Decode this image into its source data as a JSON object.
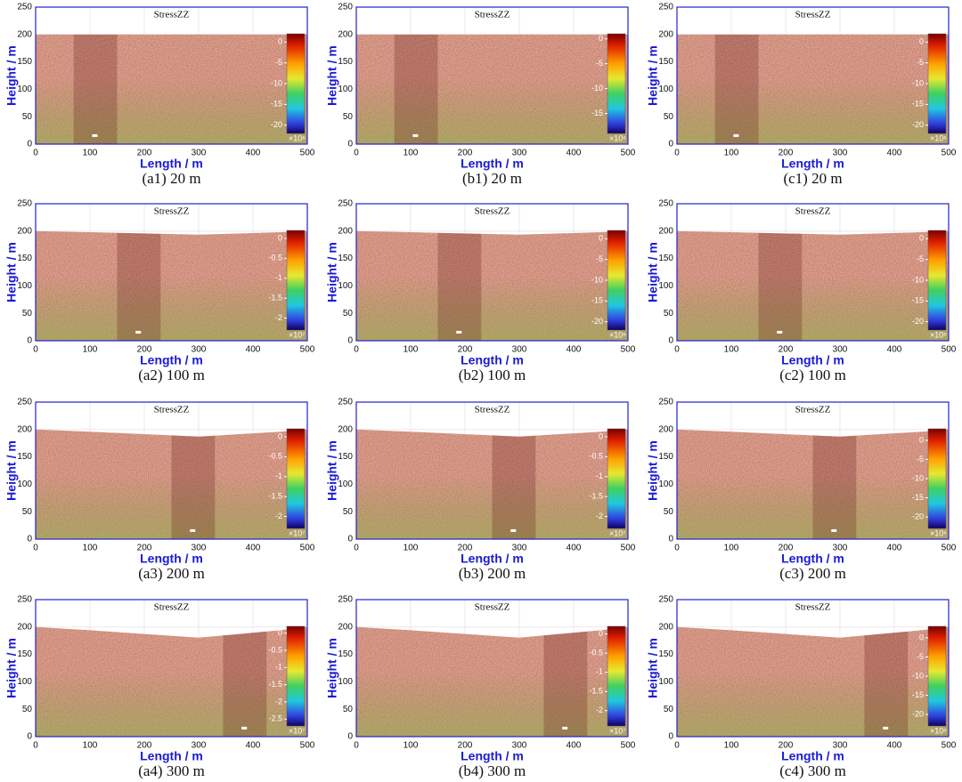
{
  "chart_data": [
    {
      "type": "image",
      "title": "StressZZ",
      "xlabel": "Length / m",
      "ylabel": "Height / m",
      "xlim": [
        0,
        500
      ],
      "ylim": [
        0,
        250
      ],
      "xticks": [
        0,
        100,
        200,
        300,
        400,
        500
      ],
      "yticks": [
        0,
        50,
        100,
        150,
        200,
        250
      ],
      "colorbar": {
        "lim": [
          -22,
          2
        ],
        "ticks": [
          0,
          -5,
          -10,
          -15,
          -20
        ],
        "label": "×10⁶"
      },
      "caption": "(a1) 20 m"
    },
    {
      "type": "image",
      "title": "StressZZ",
      "xlabel": "Length / m",
      "ylabel": "Height / m",
      "xlim": [
        0,
        500
      ],
      "ylim": [
        0,
        250
      ],
      "xticks": [
        0,
        100,
        200,
        300,
        400,
        500
      ],
      "yticks": [
        0,
        50,
        100,
        150,
        200,
        250
      ],
      "colorbar": {
        "lim": [
          -19,
          1
        ],
        "ticks": [
          0,
          -5,
          -10,
          -15
        ],
        "label": "×10⁶"
      },
      "caption": "(b1) 20 m"
    },
    {
      "type": "image",
      "title": "StressZZ",
      "xlabel": "Length / m",
      "ylabel": "Height / m",
      "xlim": [
        0,
        500
      ],
      "ylim": [
        0,
        250
      ],
      "xticks": [
        0,
        100,
        200,
        300,
        400,
        500
      ],
      "yticks": [
        0,
        50,
        100,
        150,
        200,
        250
      ],
      "colorbar": {
        "lim": [
          -22,
          2
        ],
        "ticks": [
          0,
          -5,
          -10,
          -15,
          -20
        ],
        "label": "×10⁶"
      },
      "caption": "(c1) 20 m"
    },
    {
      "type": "image",
      "title": "StressZZ",
      "xlabel": "Length / m",
      "ylabel": "Height / m",
      "xlim": [
        0,
        500
      ],
      "ylim": [
        0,
        250
      ],
      "xticks": [
        0,
        100,
        200,
        300,
        400,
        500
      ],
      "yticks": [
        0,
        50,
        100,
        150,
        200,
        250
      ],
      "colorbar": {
        "lim": [
          -2.3,
          0.2
        ],
        "ticks": [
          0,
          -0.5,
          -1,
          -1.5,
          -2
        ],
        "label": "×10⁷"
      },
      "caption": "(a2) 100 m"
    },
    {
      "type": "image",
      "title": "StressZZ",
      "xlabel": "Length / m",
      "ylabel": "Height / m",
      "xlim": [
        0,
        500
      ],
      "ylim": [
        0,
        250
      ],
      "xticks": [
        0,
        100,
        200,
        300,
        400,
        500
      ],
      "yticks": [
        0,
        50,
        100,
        150,
        200,
        250
      ],
      "colorbar": {
        "lim": [
          -22,
          2
        ],
        "ticks": [
          0,
          -5,
          -10,
          -15,
          -20
        ],
        "label": "×10⁶"
      },
      "caption": "(b2) 100 m"
    },
    {
      "type": "image",
      "title": "StressZZ",
      "xlabel": "Length / m",
      "ylabel": "Height / m",
      "xlim": [
        0,
        500
      ],
      "ylim": [
        0,
        250
      ],
      "xticks": [
        0,
        100,
        200,
        300,
        400,
        500
      ],
      "yticks": [
        0,
        50,
        100,
        150,
        200,
        250
      ],
      "colorbar": {
        "lim": [
          -22,
          2
        ],
        "ticks": [
          0,
          -5,
          -10,
          -15,
          -20
        ],
        "label": "×10⁶"
      },
      "caption": "(c2) 100 m"
    },
    {
      "type": "image",
      "title": "StressZZ",
      "xlabel": "Length / m",
      "ylabel": "Height / m",
      "xlim": [
        0,
        500
      ],
      "ylim": [
        0,
        250
      ],
      "xticks": [
        0,
        100,
        200,
        300,
        400,
        500
      ],
      "yticks": [
        0,
        50,
        100,
        150,
        200,
        250
      ],
      "colorbar": {
        "lim": [
          -2.3,
          0.2
        ],
        "ticks": [
          0,
          -0.5,
          -1,
          -1.5,
          -2
        ],
        "label": "×10⁷"
      },
      "caption": "(a3) 200 m"
    },
    {
      "type": "image",
      "title": "StressZZ",
      "xlabel": "Length / m",
      "ylabel": "Height / m",
      "xlim": [
        0,
        500
      ],
      "ylim": [
        0,
        250
      ],
      "xticks": [
        0,
        100,
        200,
        300,
        400,
        500
      ],
      "yticks": [
        0,
        50,
        100,
        150,
        200,
        250
      ],
      "colorbar": {
        "lim": [
          -2.3,
          0.2
        ],
        "ticks": [
          0,
          -0.5,
          -1,
          -1.5,
          -2
        ],
        "label": "×10⁷"
      },
      "caption": "(b3) 200 m"
    },
    {
      "type": "image",
      "title": "StressZZ",
      "xlabel": "Length / m",
      "ylabel": "Height / m",
      "xlim": [
        0,
        500
      ],
      "ylim": [
        0,
        250
      ],
      "xticks": [
        0,
        100,
        200,
        300,
        400,
        500
      ],
      "yticks": [
        0,
        50,
        100,
        150,
        200,
        250
      ],
      "colorbar": {
        "lim": [
          -23,
          3
        ],
        "ticks": [
          0,
          -5,
          -10,
          -15,
          -20
        ],
        "label": "×10⁶"
      },
      "caption": "(c3) 200 m"
    },
    {
      "type": "image",
      "title": "StressZZ",
      "xlabel": "Length / m",
      "ylabel": "Height / m",
      "xlim": [
        0,
        500
      ],
      "ylim": [
        0,
        250
      ],
      "xticks": [
        0,
        100,
        200,
        300,
        400,
        500
      ],
      "yticks": [
        0,
        50,
        100,
        150,
        200,
        250
      ],
      "colorbar": {
        "lim": [
          -2.7,
          0.2
        ],
        "ticks": [
          0,
          -0.5,
          -1,
          -1.5,
          -2,
          -2.5
        ],
        "label": "×10⁷"
      },
      "caption": "(a4) 300 m"
    },
    {
      "type": "image",
      "title": "StressZZ",
      "xlabel": "Length / m",
      "ylabel": "Height / m",
      "xlim": [
        0,
        500
      ],
      "ylim": [
        0,
        250
      ],
      "xticks": [
        0,
        100,
        200,
        300,
        400,
        500
      ],
      "yticks": [
        0,
        50,
        100,
        150,
        200,
        250
      ],
      "colorbar": {
        "lim": [
          -2.4,
          0.2
        ],
        "ticks": [
          0,
          -0.5,
          -1,
          -1.5,
          -2
        ],
        "label": "×10⁷"
      },
      "caption": "(b4) 300 m"
    },
    {
      "type": "image",
      "title": "StressZZ",
      "xlabel": "Length / m",
      "ylabel": "Height / m",
      "xlim": [
        0,
        500
      ],
      "ylim": [
        0,
        250
      ],
      "xticks": [
        0,
        100,
        200,
        300,
        400,
        500
      ],
      "yticks": [
        0,
        50,
        100,
        150,
        200,
        250
      ],
      "colorbar": {
        "lim": [
          -23,
          3
        ],
        "ticks": [
          0,
          -5,
          -10,
          -15,
          -20
        ],
        "label": "×10⁶"
      },
      "caption": "(c4) 300 m"
    }
  ]
}
